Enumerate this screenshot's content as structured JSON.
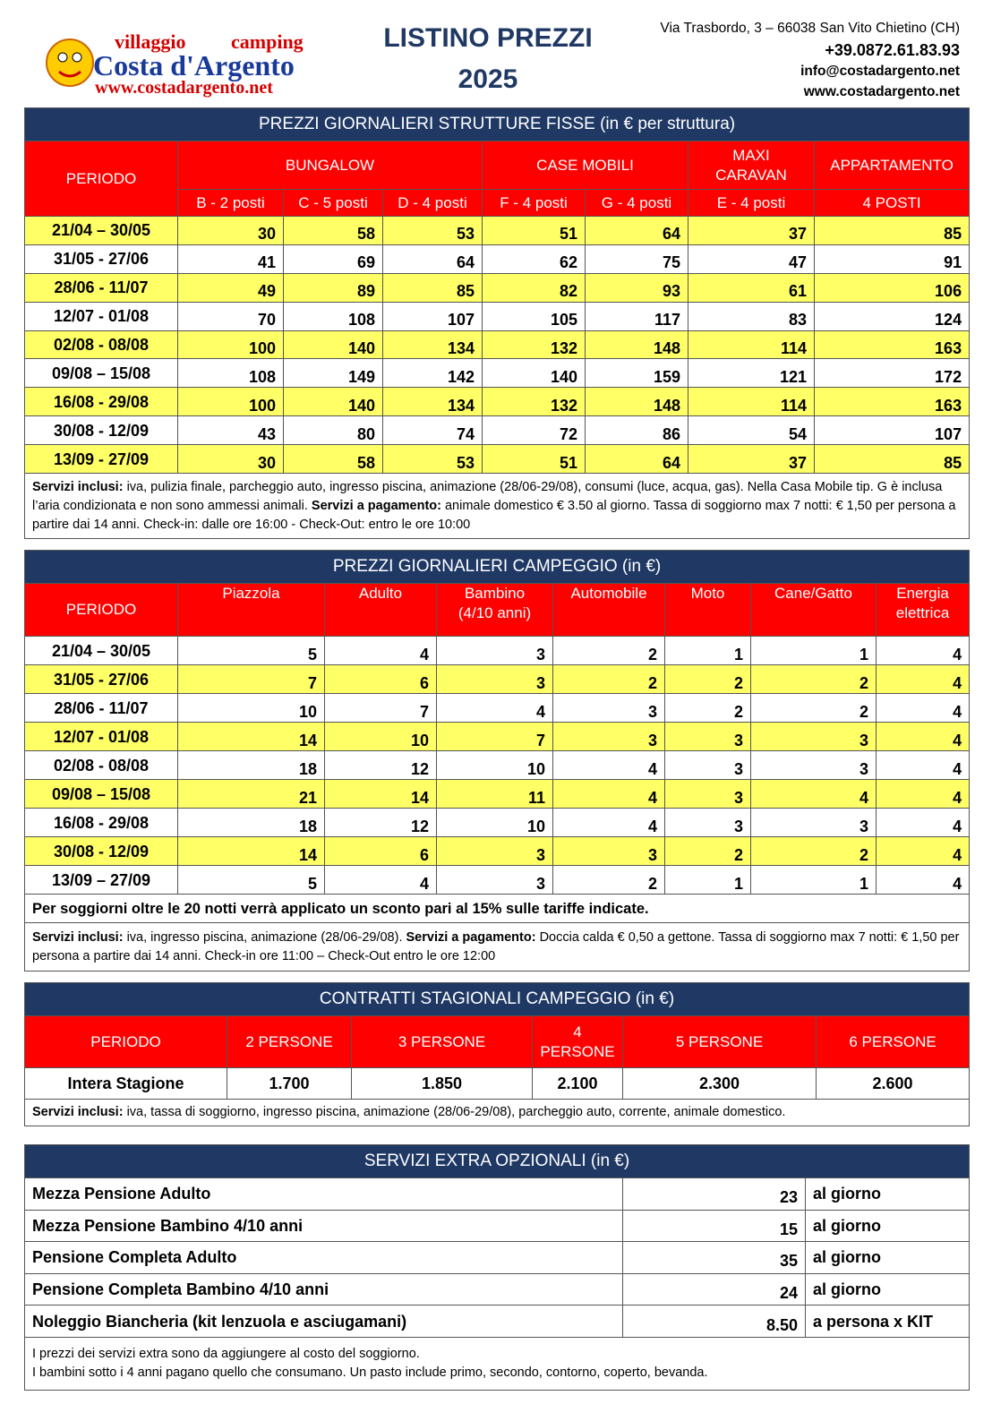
{
  "header": {
    "logo": {
      "line1a": "villaggio",
      "line1b": "camping",
      "name": "Costa d'Argento",
      "url": "www.costadargento.net"
    },
    "title": "LISTINO PREZZI",
    "year": "2025",
    "contact": [
      "Via Trasbordo, 3 – 66038 San Vito Chietino (CH)",
      "+39.0872.61.83.93",
      "info@costadargento.net",
      "www.costadargento.net"
    ]
  },
  "fixed": {
    "title": "PREZZI GIORNALIERI STRUTTURE FISSE (in € per struttura)",
    "period_header": "PERIODO",
    "group_headers": [
      "BUNGALOW",
      "CASE MOBILI",
      "MAXI\nCARAVAN",
      "APPARTAMENTO"
    ],
    "sub_headers": [
      "B - 2 posti",
      "C - 5 posti",
      "D - 4 posti",
      "F - 4 posti",
      "G - 4 posti",
      "E - 4 posti",
      "4 POSTI"
    ],
    "rows": [
      [
        "21/04 – 30/05",
        "30",
        "58",
        "53",
        "51",
        "64",
        "37",
        "85"
      ],
      [
        "31/05 - 27/06",
        "41",
        "69",
        "64",
        "62",
        "75",
        "47",
        "91"
      ],
      [
        "28/06 - 11/07",
        "49",
        "89",
        "85",
        "82",
        "93",
        "61",
        "106"
      ],
      [
        "12/07 - 01/08",
        "70",
        "108",
        "107",
        "105",
        "117",
        "83",
        "124"
      ],
      [
        "02/08 - 08/08",
        "100",
        "140",
        "134",
        "132",
        "148",
        "114",
        "163"
      ],
      [
        "09/08 – 15/08",
        "108",
        "149",
        "142",
        "140",
        "159",
        "121",
        "172"
      ],
      [
        "16/08 - 29/08",
        "100",
        "140",
        "134",
        "132",
        "148",
        "114",
        "163"
      ],
      [
        "30/08 - 12/09",
        "43",
        "80",
        "74",
        "72",
        "86",
        "54",
        "107"
      ],
      [
        "13/09 - 27/09",
        "30",
        "58",
        "53",
        "51",
        "64",
        "37",
        "85"
      ]
    ],
    "notes": [
      [
        {
          "text": "Servizi inclusi:",
          "bold": true
        },
        {
          "text": " iva, pulizia finale, parcheggio auto, ingresso piscina, animazione (28/06-29/08), consumi (luce, acqua, gas). Nella Casa Mobile tip. G è inclusa l’aria condizionata e non sono ammessi animali. ",
          "bold": false
        },
        {
          "text": "Servizi a pagamento:",
          "bold": true
        },
        {
          "text": " animale domestico € 3.50 al giorno. Tassa di soggiorno max 7 notti: € 1,50 per persona a partire dai 14 anni.  Check-in: dalle ore 16:00  - Check-Out: entro le ore 10:00",
          "bold": false
        }
      ]
    ]
  },
  "camping": {
    "title": "PREZZI GIORNALIERI CAMPEGGIO (in €)",
    "headers": [
      "PERIODO",
      "Piazzola",
      "Adulto",
      "Bambino\n(4/10 anni)",
      "Automobile",
      "Moto",
      "Cane/Gatto",
      "Energia\nelettrica"
    ],
    "rows": [
      [
        "21/04 – 30/05",
        "5",
        "4",
        "3",
        "2",
        "1",
        "1",
        "4"
      ],
      [
        "31/05 - 27/06",
        "7",
        "6",
        "3",
        "2",
        "2",
        "2",
        "4"
      ],
      [
        "28/06 - 11/07",
        "10",
        "7",
        "4",
        "3",
        "2",
        "2",
        "4"
      ],
      [
        "12/07 - 01/08",
        "14",
        "10",
        "7",
        "3",
        "3",
        "3",
        "4"
      ],
      [
        "02/08 - 08/08",
        "18",
        "12",
        "10",
        "4",
        "3",
        "3",
        "4"
      ],
      [
        "09/08 – 15/08",
        "21",
        "14",
        "11",
        "4",
        "3",
        "4",
        "4"
      ],
      [
        "16/08 - 29/08",
        "18",
        "12",
        "10",
        "4",
        "3",
        "3",
        "4"
      ],
      [
        "30/08 - 12/09",
        "14",
        "6",
        "3",
        "3",
        "2",
        "2",
        "4"
      ],
      [
        "13/09 – 27/09",
        "5",
        "4",
        "3",
        "2",
        "1",
        "1",
        "4"
      ]
    ],
    "discount": "Per soggiorni oltre le 20 notti verrà applicato un sconto pari al 15% sulle tariffe indicate.",
    "notes": [
      [
        {
          "text": "Servizi inclusi:",
          "bold": true
        },
        {
          "text": " iva, ingresso piscina, animazione (28/06-29/08). ",
          "bold": false
        },
        {
          "text": "Servizi a pagamento:",
          "bold": true
        },
        {
          "text": " Doccia calda € 0,50 a gettone. Tassa di soggiorno max 7 notti: € 1,50 per persona a partire dai 14 anni.   Check-in ore 11:00 – Check-Out entro le ore 12:00",
          "bold": false
        }
      ]
    ]
  },
  "seasonal": {
    "title": "CONTRATTI STAGIONALI CAMPEGGIO (in €)",
    "headers": [
      "PERIODO",
      "2 PERSONE",
      "3 PERSONE",
      "4\nPERSONE",
      "5 PERSONE",
      "6 PERSONE"
    ],
    "rows": [
      [
        "Intera Stagione",
        "1.700",
        "1.850",
        "2.100",
        "2.300",
        "2.600"
      ]
    ],
    "notes": [
      [
        {
          "text": "Servizi inclusi:",
          "bold": true
        },
        {
          "text": " iva, tassa di soggiorno, ingresso piscina, animazione (28/06-29/08), parcheggio auto, corrente, animale domestico.",
          "bold": false
        }
      ]
    ]
  },
  "extra": {
    "title": "SERVIZI EXTRA OPZIONALI (in €)",
    "rows": [
      [
        "Mezza Pensione Adulto",
        "23",
        "al giorno"
      ],
      [
        "Mezza Pensione Bambino 4/10 anni",
        "15",
        "al giorno"
      ],
      [
        "Pensione Completa Adulto",
        "35",
        "al giorno"
      ],
      [
        "Pensione Completa Bambino 4/10 anni",
        "24",
        "al giorno"
      ],
      [
        "Noleggio Biancheria (kit lenzuola e asciugamani)",
        "8.50",
        "a persona x KIT"
      ]
    ],
    "notes": [
      [
        {
          "text": "I prezzi dei servizi extra sono da aggiungere al costo del soggiorno.",
          "bold": false
        }
      ],
      [
        {
          "text": "I bambini sotto i 4 anni pagano quello che consumano. Un pasto include primo, secondo, contorno, coperto, bevanda.",
          "bold": false
        }
      ]
    ]
  }
}
